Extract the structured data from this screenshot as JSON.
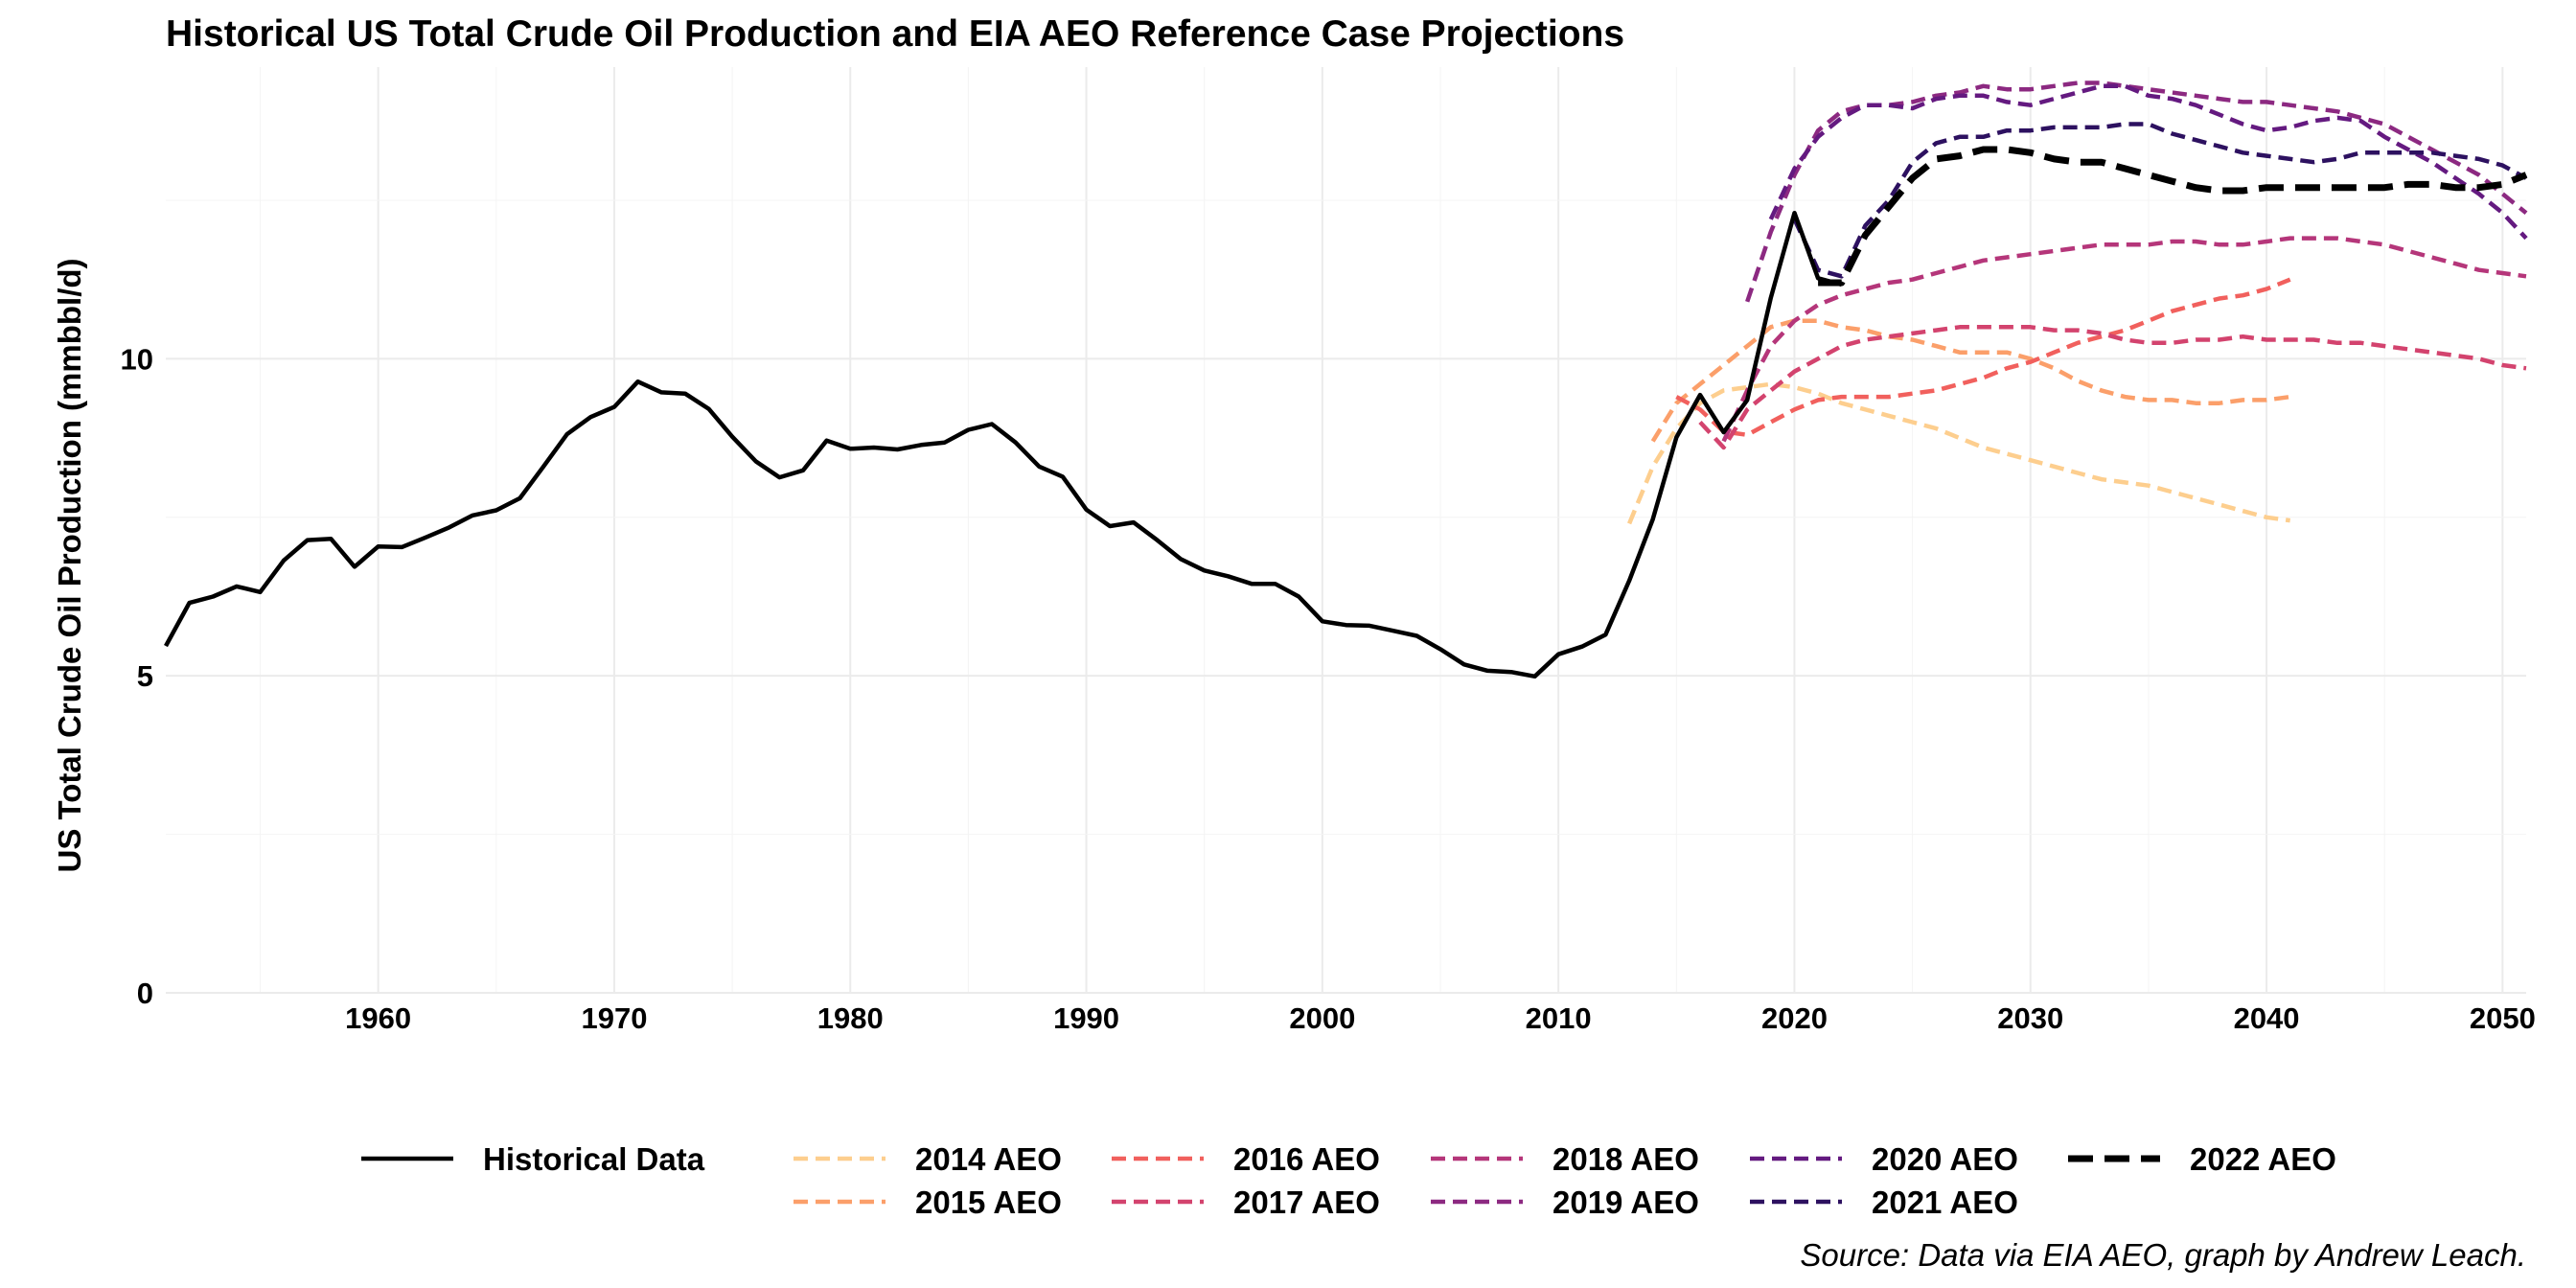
{
  "chart_data": {
    "type": "line",
    "title": "Historical US Total Crude Oil Production and EIA AEO Reference Case Projections",
    "ylabel": "US Total Crude Oil Production (mmbbl/d)",
    "xlabel": "",
    "caption": "Source: Data via EIA AEO, graph by Andrew Leach.",
    "xlim": [
      1951,
      2051
    ],
    "ylim": [
      0,
      14.6
    ],
    "x_ticks": [
      1960,
      1970,
      1980,
      1990,
      2000,
      2010,
      2020,
      2030,
      2040,
      2050
    ],
    "y_ticks": [
      0,
      5,
      10
    ],
    "grid": true,
    "legend_position": "bottom",
    "series": [
      {
        "name": "Historical Data",
        "color": "#000000",
        "dash": "solid",
        "x": [
          1951,
          1952,
          1953,
          1954,
          1955,
          1956,
          1957,
          1958,
          1959,
          1960,
          1961,
          1962,
          1963,
          1964,
          1965,
          1966,
          1967,
          1968,
          1969,
          1970,
          1971,
          1972,
          1973,
          1974,
          1975,
          1976,
          1977,
          1978,
          1979,
          1980,
          1981,
          1982,
          1983,
          1984,
          1985,
          1986,
          1987,
          1988,
          1989,
          1990,
          1991,
          1992,
          1993,
          1994,
          1995,
          1996,
          1997,
          1998,
          1999,
          2000,
          2001,
          2002,
          2003,
          2004,
          2005,
          2006,
          2007,
          2008,
          2009,
          2010,
          2011,
          2012,
          2013,
          2014,
          2015,
          2016,
          2017,
          2018,
          2019,
          2020,
          2021,
          2022
        ],
        "y": [
          5.47,
          6.15,
          6.25,
          6.41,
          6.32,
          6.82,
          7.14,
          7.16,
          6.72,
          7.04,
          7.03,
          7.18,
          7.34,
          7.53,
          7.61,
          7.8,
          8.3,
          8.81,
          9.08,
          9.24,
          9.64,
          9.47,
          9.45,
          9.21,
          8.77,
          8.38,
          8.13,
          8.24,
          8.71,
          8.58,
          8.6,
          8.57,
          8.64,
          8.68,
          8.88,
          8.97,
          8.68,
          8.3,
          8.14,
          7.62,
          7.36,
          7.42,
          7.14,
          6.84,
          6.66,
          6.57,
          6.45,
          6.45,
          6.25,
          5.86,
          5.8,
          5.79,
          5.71,
          5.63,
          5.42,
          5.18,
          5.08,
          5.06,
          4.99,
          5.34,
          5.46,
          5.65,
          6.5,
          7.47,
          8.76,
          9.43,
          8.84,
          9.35,
          10.96,
          12.3,
          11.27,
          11.17
        ]
      },
      {
        "name": "2014 AEO",
        "color": "#fdce8e",
        "dash": "dashed",
        "x": [
          2013,
          2014,
          2015,
          2016,
          2017,
          2018,
          2019,
          2020,
          2021,
          2022,
          2023,
          2024,
          2025,
          2026,
          2027,
          2028,
          2029,
          2030,
          2031,
          2032,
          2033,
          2034,
          2035,
          2036,
          2037,
          2038,
          2039,
          2040,
          2041
        ],
        "y": [
          7.4,
          8.3,
          8.9,
          9.3,
          9.5,
          9.55,
          9.6,
          9.55,
          9.45,
          9.3,
          9.2,
          9.1,
          9.0,
          8.9,
          8.75,
          8.6,
          8.5,
          8.4,
          8.3,
          8.2,
          8.1,
          8.05,
          8.0,
          7.9,
          7.8,
          7.7,
          7.6,
          7.5,
          7.45
        ]
      },
      {
        "name": "2015 AEO",
        "color": "#fb9f6a",
        "dash": "dashed",
        "x": [
          2014,
          2015,
          2016,
          2017,
          2018,
          2019,
          2020,
          2021,
          2022,
          2023,
          2024,
          2025,
          2026,
          2027,
          2028,
          2029,
          2030,
          2031,
          2032,
          2033,
          2034,
          2035,
          2036,
          2037,
          2038,
          2039,
          2040,
          2041
        ],
        "y": [
          8.7,
          9.3,
          9.6,
          9.9,
          10.2,
          10.5,
          10.6,
          10.6,
          10.5,
          10.45,
          10.35,
          10.3,
          10.2,
          10.1,
          10.1,
          10.1,
          10.0,
          9.85,
          9.65,
          9.5,
          9.4,
          9.35,
          9.35,
          9.3,
          9.3,
          9.35,
          9.35,
          9.4
        ]
      },
      {
        "name": "2016 AEO",
        "color": "#f1605d",
        "dash": "dashed",
        "x": [
          2015,
          2016,
          2017,
          2018,
          2019,
          2020,
          2021,
          2022,
          2023,
          2024,
          2025,
          2026,
          2027,
          2028,
          2029,
          2030,
          2031,
          2032,
          2033,
          2034,
          2035,
          2036,
          2037,
          2038,
          2039,
          2040,
          2041
        ],
        "y": [
          9.4,
          9.2,
          8.85,
          8.8,
          9.0,
          9.2,
          9.35,
          9.4,
          9.4,
          9.4,
          9.45,
          9.5,
          9.6,
          9.7,
          9.85,
          9.95,
          10.1,
          10.25,
          10.35,
          10.45,
          10.6,
          10.75,
          10.85,
          10.95,
          11.0,
          11.1,
          11.25
        ]
      },
      {
        "name": "2017 AEO",
        "color": "#d3436e",
        "dash": "dashed",
        "x": [
          2016,
          2017,
          2018,
          2019,
          2020,
          2021,
          2022,
          2023,
          2024,
          2025,
          2026,
          2027,
          2028,
          2029,
          2030,
          2031,
          2032,
          2033,
          2034,
          2035,
          2036,
          2037,
          2038,
          2039,
          2040,
          2041,
          2042,
          2043,
          2044,
          2045,
          2046,
          2047,
          2048,
          2049,
          2050,
          2051
        ],
        "y": [
          9.0,
          8.6,
          9.2,
          9.5,
          9.8,
          10.0,
          10.2,
          10.3,
          10.35,
          10.4,
          10.45,
          10.5,
          10.5,
          10.5,
          10.5,
          10.45,
          10.45,
          10.4,
          10.3,
          10.25,
          10.25,
          10.3,
          10.3,
          10.35,
          10.3,
          10.3,
          10.3,
          10.25,
          10.25,
          10.2,
          10.15,
          10.1,
          10.05,
          10.0,
          9.9,
          9.85
        ]
      },
      {
        "name": "2018 AEO",
        "color": "#b5367a",
        "dash": "dashed",
        "x": [
          2017,
          2018,
          2019,
          2020,
          2021,
          2022,
          2023,
          2024,
          2025,
          2026,
          2027,
          2028,
          2029,
          2030,
          2031,
          2032,
          2033,
          2034,
          2035,
          2036,
          2037,
          2038,
          2039,
          2040,
          2041,
          2042,
          2043,
          2044,
          2045,
          2046,
          2047,
          2048,
          2049,
          2050,
          2051
        ],
        "y": [
          8.7,
          9.5,
          10.2,
          10.6,
          10.85,
          11.0,
          11.1,
          11.2,
          11.25,
          11.35,
          11.45,
          11.55,
          11.6,
          11.65,
          11.7,
          11.75,
          11.8,
          11.8,
          11.8,
          11.85,
          11.85,
          11.8,
          11.8,
          11.85,
          11.9,
          11.9,
          11.9,
          11.85,
          11.8,
          11.7,
          11.6,
          11.5,
          11.4,
          11.35,
          11.3
        ]
      },
      {
        "name": "2019 AEO",
        "color": "#8c2981",
        "dash": "dashed",
        "x": [
          2018,
          2019,
          2020,
          2021,
          2022,
          2023,
          2024,
          2025,
          2026,
          2027,
          2028,
          2029,
          2030,
          2031,
          2032,
          2033,
          2034,
          2035,
          2036,
          2037,
          2038,
          2039,
          2040,
          2041,
          2042,
          2043,
          2044,
          2045,
          2046,
          2047,
          2048,
          2049,
          2050,
          2051
        ],
        "y": [
          10.9,
          12.0,
          12.9,
          13.6,
          13.9,
          14.0,
          14.0,
          14.05,
          14.15,
          14.2,
          14.3,
          14.25,
          14.25,
          14.3,
          14.35,
          14.35,
          14.3,
          14.25,
          14.2,
          14.15,
          14.1,
          14.05,
          14.05,
          14.0,
          13.95,
          13.9,
          13.8,
          13.7,
          13.5,
          13.3,
          13.1,
          12.9,
          12.6,
          12.3
        ]
      },
      {
        "name": "2020 AEO",
        "color": "#641a80",
        "dash": "dashed",
        "x": [
          2019,
          2020,
          2021,
          2022,
          2023,
          2024,
          2025,
          2026,
          2027,
          2028,
          2029,
          2030,
          2031,
          2032,
          2033,
          2034,
          2035,
          2036,
          2037,
          2038,
          2039,
          2040,
          2041,
          2042,
          2043,
          2044,
          2045,
          2046,
          2047,
          2048,
          2049,
          2050,
          2051
        ],
        "y": [
          12.2,
          13.0,
          13.5,
          13.8,
          14.0,
          14.0,
          13.95,
          14.1,
          14.15,
          14.15,
          14.05,
          14.0,
          14.1,
          14.2,
          14.3,
          14.3,
          14.15,
          14.1,
          14.0,
          13.85,
          13.7,
          13.6,
          13.65,
          13.75,
          13.8,
          13.75,
          13.5,
          13.3,
          13.1,
          12.85,
          12.6,
          12.3,
          11.9
        ]
      },
      {
        "name": "2021 AEO",
        "color": "#2d1160",
        "dash": "dashed",
        "x": [
          2020,
          2021,
          2022,
          2023,
          2024,
          2025,
          2026,
          2027,
          2028,
          2029,
          2030,
          2031,
          2032,
          2033,
          2034,
          2035,
          2036,
          2037,
          2038,
          2039,
          2040,
          2041,
          2042,
          2043,
          2044,
          2045,
          2046,
          2047,
          2048,
          2049,
          2050,
          2051
        ],
        "y": [
          12.2,
          11.4,
          11.3,
          12.1,
          12.5,
          13.1,
          13.4,
          13.5,
          13.5,
          13.6,
          13.6,
          13.65,
          13.65,
          13.65,
          13.7,
          13.7,
          13.55,
          13.45,
          13.35,
          13.25,
          13.2,
          13.15,
          13.1,
          13.15,
          13.25,
          13.25,
          13.25,
          13.25,
          13.2,
          13.15,
          13.05,
          12.85
        ]
      },
      {
        "name": "2022 AEO",
        "color": "#000000",
        "dash": "longdash",
        "x": [
          2021,
          2022,
          2023,
          2024,
          2025,
          2026,
          2027,
          2028,
          2029,
          2030,
          2031,
          2032,
          2033,
          2034,
          2035,
          2036,
          2037,
          2038,
          2039,
          2040,
          2041,
          2042,
          2043,
          2044,
          2045,
          2046,
          2047,
          2048,
          2049,
          2050,
          2051
        ],
        "y": [
          11.2,
          11.2,
          11.95,
          12.4,
          12.85,
          13.15,
          13.2,
          13.3,
          13.3,
          13.25,
          13.15,
          13.1,
          13.1,
          13.0,
          12.9,
          12.8,
          12.7,
          12.65,
          12.65,
          12.7,
          12.7,
          12.7,
          12.7,
          12.7,
          12.7,
          12.75,
          12.75,
          12.7,
          12.7,
          12.75,
          12.9
        ]
      }
    ]
  }
}
